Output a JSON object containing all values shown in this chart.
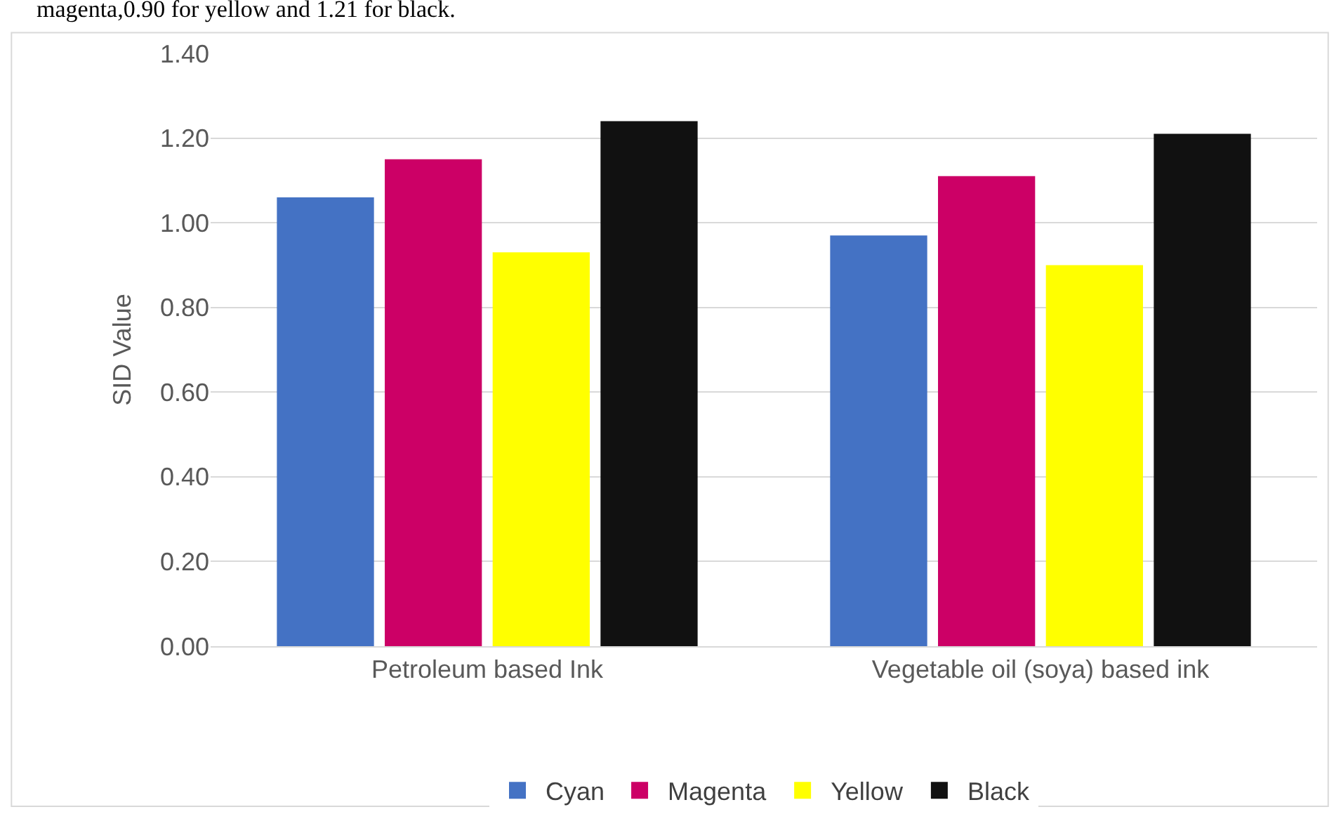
{
  "chart_data": {
    "type": "bar",
    "ylabel": "SID Value",
    "categories": [
      "Petroleum based Ink",
      "Vegetable oil (soya) based ink"
    ],
    "series": [
      {
        "name": "Cyan",
        "color": "#4472c4",
        "values": [
          1.06,
          0.97
        ]
      },
      {
        "name": "Magenta",
        "color": "#cc0066",
        "values": [
          1.15,
          1.11
        ]
      },
      {
        "name": "Yellow",
        "color": "#ffff00",
        "values": [
          0.93,
          0.9
        ]
      },
      {
        "name": "Black",
        "color": "#111111",
        "values": [
          1.24,
          1.21
        ]
      }
    ],
    "ylim": [
      0,
      1.4
    ],
    "yticks": [
      {
        "value": 0,
        "label": "0.00"
      },
      {
        "value": 0.2,
        "label": "0.20"
      },
      {
        "value": 0.4,
        "label": "0.40"
      },
      {
        "value": 0.6,
        "label": "0.60"
      },
      {
        "value": 0.8,
        "label": "0.80"
      },
      {
        "value": 1.0,
        "label": "1.00"
      },
      {
        "value": 1.2,
        "label": "1.20"
      },
      {
        "value": 1.4,
        "label": "1.40"
      }
    ],
    "grid": "y",
    "legend": "bottom",
    "annotations": [
      "magenta,0.90 for yellow and 1.21 for black."
    ]
  }
}
